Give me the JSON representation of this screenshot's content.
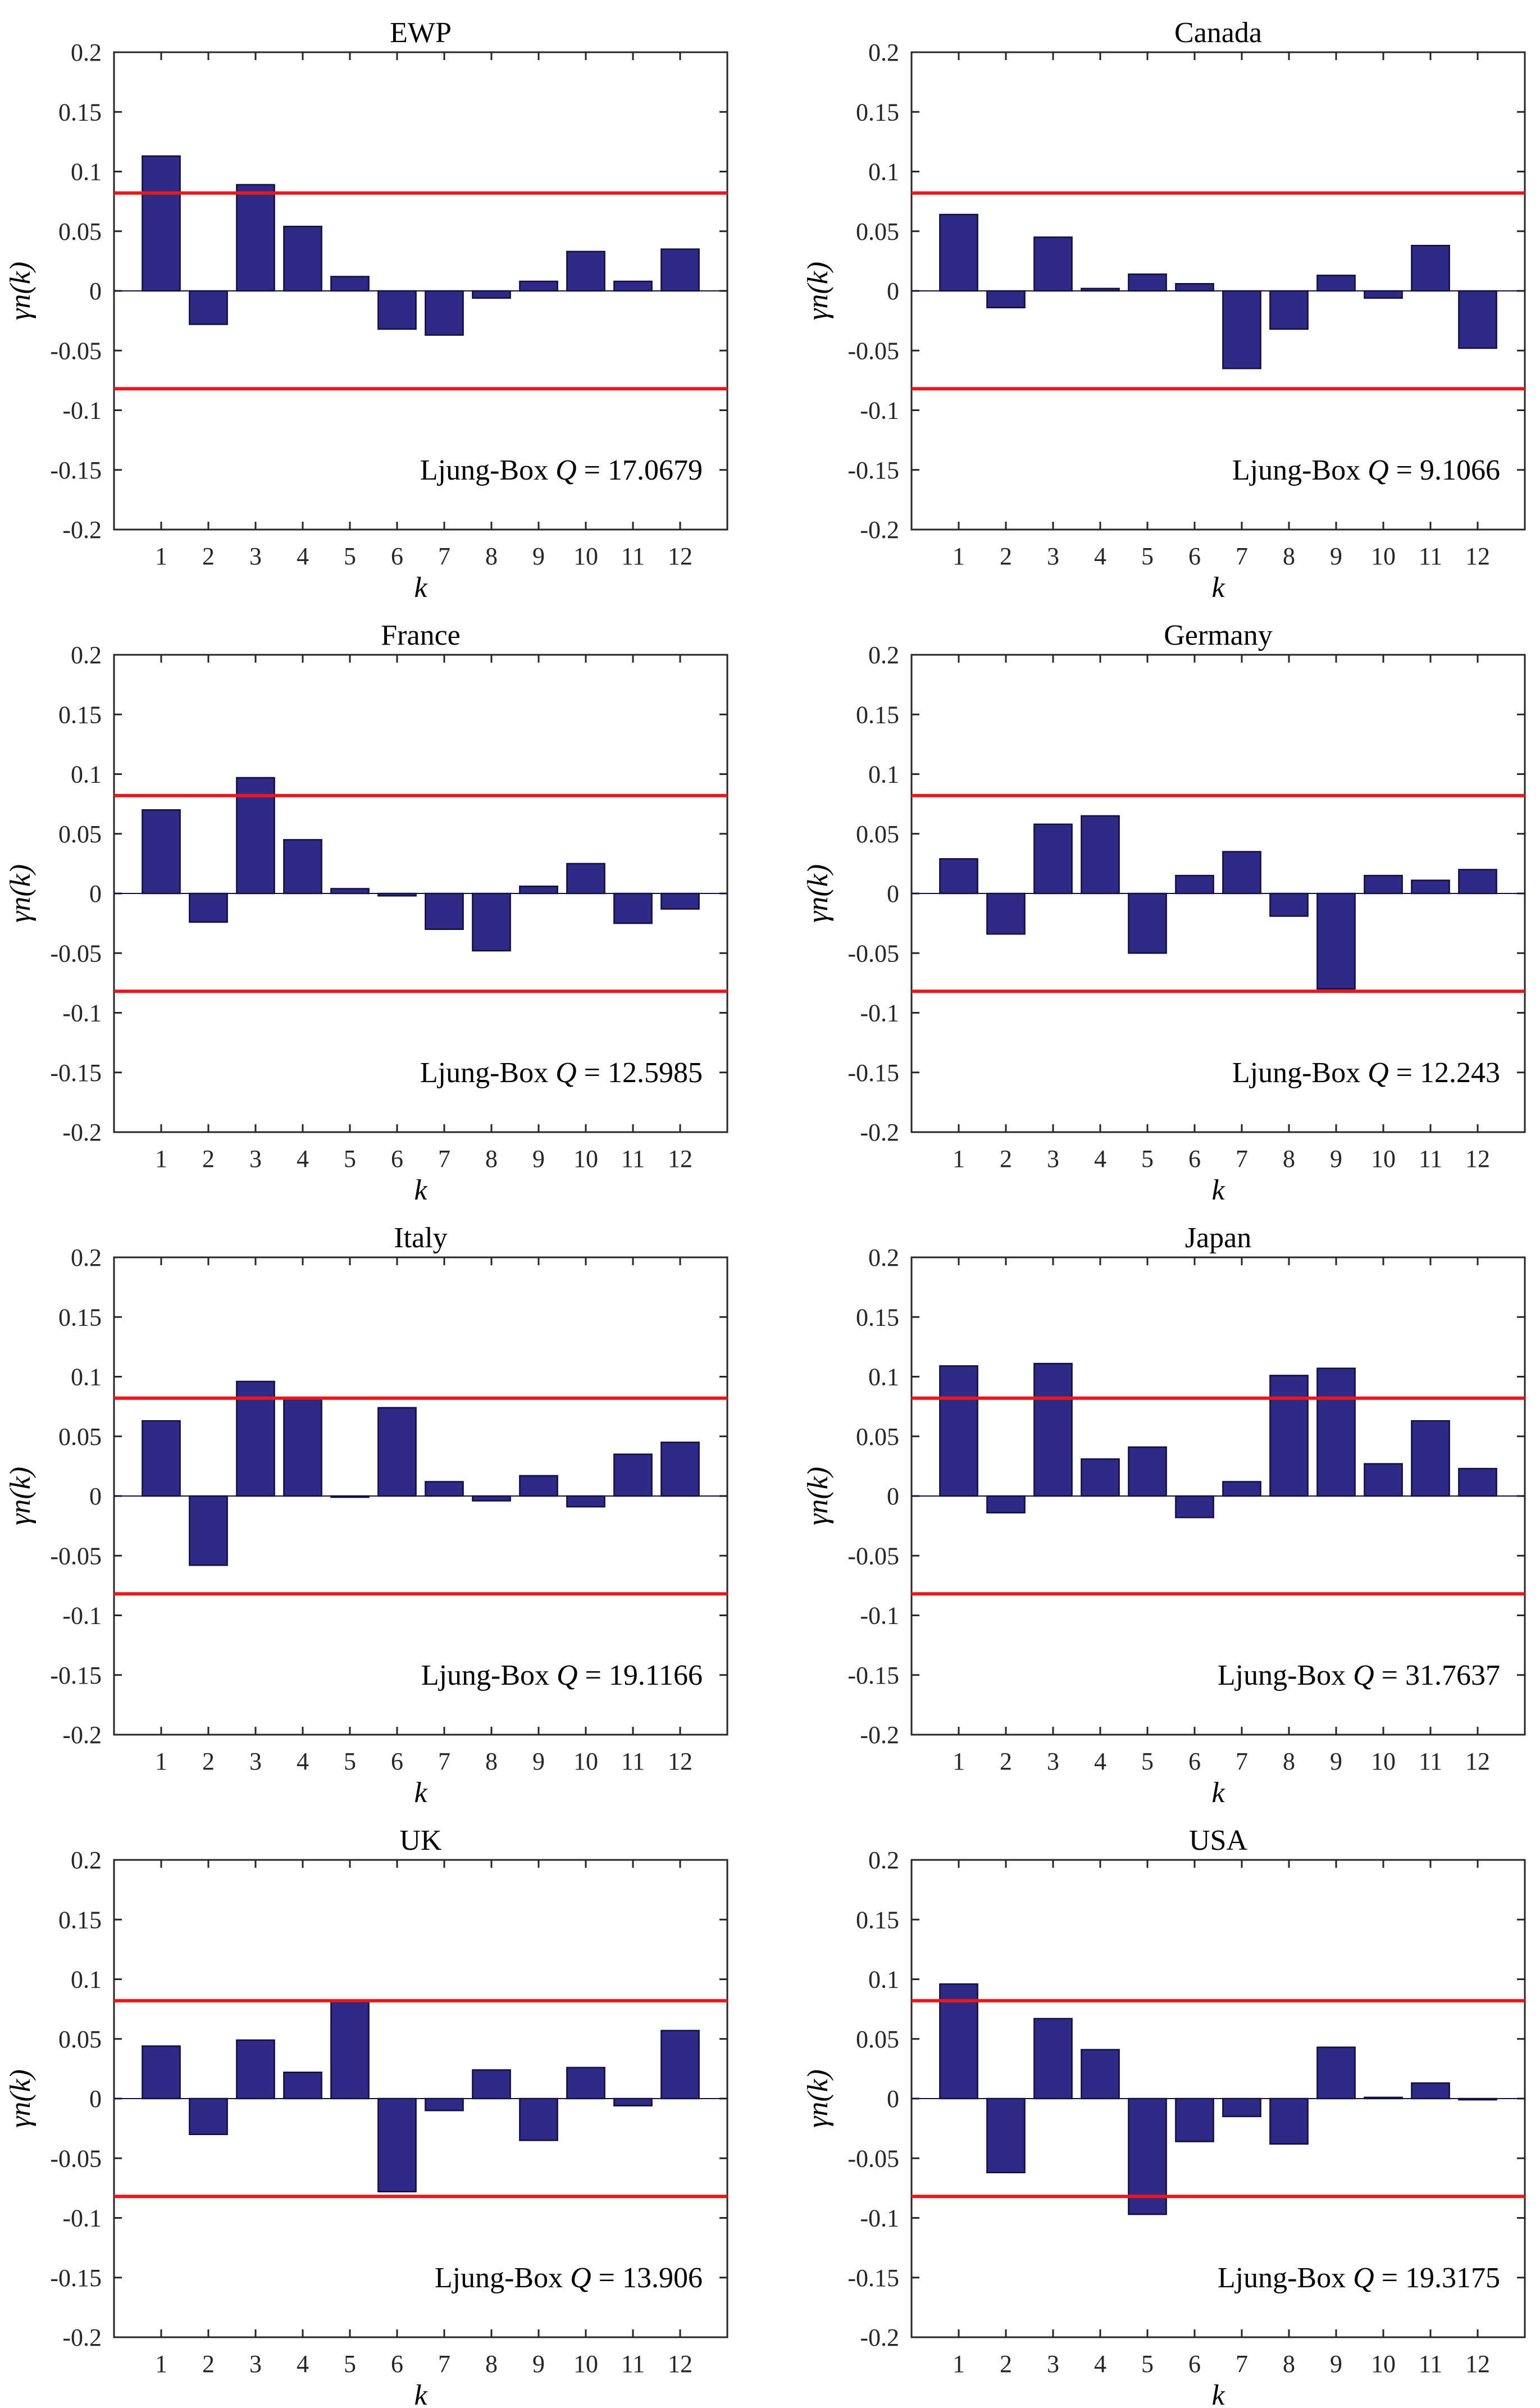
{
  "chart_data": [
    {
      "type": "bar",
      "title": "EWP",
      "categories": [
        "1",
        "2",
        "3",
        "4",
        "5",
        "6",
        "7",
        "8",
        "9",
        "10",
        "11",
        "12"
      ],
      "values": [
        0.113,
        -0.028,
        0.089,
        0.054,
        0.012,
        -0.032,
        -0.037,
        -0.006,
        0.008,
        0.033,
        0.008,
        0.035
      ],
      "ylim": [
        -0.2,
        0.2
      ],
      "yticks": [
        "0.2",
        "0.15",
        "0.1",
        "0.05",
        "0",
        "-0.05",
        "-0.1",
        "-0.15",
        "-0.2"
      ],
      "xlabel": "k",
      "ylabel": "γn(k)",
      "bounds": [
        0.082,
        -0.082
      ],
      "annotation": {
        "prefix": "Ljung-Box ",
        "var": "Q",
        "eq": " = ",
        "value": "17.0679"
      }
    },
    {
      "type": "bar",
      "title": "Canada",
      "categories": [
        "1",
        "2",
        "3",
        "4",
        "5",
        "6",
        "7",
        "8",
        "9",
        "10",
        "11",
        "12"
      ],
      "values": [
        0.064,
        -0.014,
        0.045,
        0.002,
        0.014,
        0.006,
        -0.065,
        -0.032,
        0.013,
        -0.006,
        0.038,
        -0.048
      ],
      "ylim": [
        -0.2,
        0.2
      ],
      "yticks": [
        "0.2",
        "0.15",
        "0.1",
        "0.05",
        "0",
        "-0.05",
        "-0.1",
        "-0.15",
        "-0.2"
      ],
      "xlabel": "k",
      "ylabel": "γn(k)",
      "bounds": [
        0.082,
        -0.082
      ],
      "annotation": {
        "prefix": "Ljung-Box ",
        "var": "Q",
        "eq": " = ",
        "value": "9.1066"
      }
    },
    {
      "type": "bar",
      "title": "France",
      "categories": [
        "1",
        "2",
        "3",
        "4",
        "5",
        "6",
        "7",
        "8",
        "9",
        "10",
        "11",
        "12"
      ],
      "values": [
        0.07,
        -0.024,
        0.097,
        0.045,
        0.004,
        -0.002,
        -0.03,
        -0.048,
        0.006,
        0.025,
        -0.025,
        -0.013
      ],
      "ylim": [
        -0.2,
        0.2
      ],
      "yticks": [
        "0.2",
        "0.15",
        "0.1",
        "0.05",
        "0",
        "-0.05",
        "-0.1",
        "-0.15",
        "-0.2"
      ],
      "xlabel": "k",
      "ylabel": "γn(k)",
      "bounds": [
        0.082,
        -0.082
      ],
      "annotation": {
        "prefix": "Ljung-Box ",
        "var": "Q",
        "eq": " = ",
        "value": "12.5985"
      }
    },
    {
      "type": "bar",
      "title": "Germany",
      "categories": [
        "1",
        "2",
        "3",
        "4",
        "5",
        "6",
        "7",
        "8",
        "9",
        "10",
        "11",
        "12"
      ],
      "values": [
        0.029,
        -0.034,
        0.058,
        0.065,
        -0.05,
        0.015,
        0.035,
        -0.019,
        -0.08,
        0.015,
        0.011,
        0.02
      ],
      "ylim": [
        -0.2,
        0.2
      ],
      "yticks": [
        "0.2",
        "0.15",
        "0.1",
        "0.05",
        "0",
        "-0.05",
        "-0.1",
        "-0.15",
        "-0.2"
      ],
      "xlabel": "k",
      "ylabel": "γn(k)",
      "bounds": [
        0.082,
        -0.082
      ],
      "annotation": {
        "prefix": "Ljung-Box ",
        "var": "Q",
        "eq": " = ",
        "value": "12.243"
      }
    },
    {
      "type": "bar",
      "title": "Italy",
      "categories": [
        "1",
        "2",
        "3",
        "4",
        "5",
        "6",
        "7",
        "8",
        "9",
        "10",
        "11",
        "12"
      ],
      "values": [
        0.063,
        -0.058,
        0.096,
        0.081,
        -0.001,
        0.074,
        0.012,
        -0.004,
        0.017,
        -0.009,
        0.035,
        0.045
      ],
      "ylim": [
        -0.2,
        0.2
      ],
      "yticks": [
        "0.2",
        "0.15",
        "0.1",
        "0.05",
        "0",
        "-0.05",
        "-0.1",
        "-0.15",
        "-0.2"
      ],
      "xlabel": "k",
      "ylabel": "γn(k)",
      "bounds": [
        0.082,
        -0.082
      ],
      "annotation": {
        "prefix": "Ljung-Box ",
        "var": "Q",
        "eq": " = ",
        "value": "19.1166"
      }
    },
    {
      "type": "bar",
      "title": "Japan",
      "categories": [
        "1",
        "2",
        "3",
        "4",
        "5",
        "6",
        "7",
        "8",
        "9",
        "10",
        "11",
        "12"
      ],
      "values": [
        0.109,
        -0.014,
        0.111,
        0.031,
        0.041,
        -0.018,
        0.012,
        0.101,
        0.107,
        0.027,
        0.063,
        0.023
      ],
      "ylim": [
        -0.2,
        0.2
      ],
      "yticks": [
        "0.2",
        "0.15",
        "0.1",
        "0.05",
        "0",
        "-0.05",
        "-0.1",
        "-0.15",
        "-0.2"
      ],
      "xlabel": "k",
      "ylabel": "γn(k)",
      "bounds": [
        0.082,
        -0.082
      ],
      "annotation": {
        "prefix": "Ljung-Box ",
        "var": "Q",
        "eq": " = ",
        "value": "31.7637"
      }
    },
    {
      "type": "bar",
      "title": "UK",
      "categories": [
        "1",
        "2",
        "3",
        "4",
        "5",
        "6",
        "7",
        "8",
        "9",
        "10",
        "11",
        "12"
      ],
      "values": [
        0.044,
        -0.03,
        0.049,
        0.022,
        0.081,
        -0.078,
        -0.01,
        0.024,
        -0.035,
        0.026,
        -0.006,
        0.057
      ],
      "ylim": [
        -0.2,
        0.2
      ],
      "yticks": [
        "0.2",
        "0.15",
        "0.1",
        "0.05",
        "0",
        "-0.05",
        "-0.1",
        "-0.15",
        "-0.2"
      ],
      "xlabel": "k",
      "ylabel": "γn(k)",
      "bounds": [
        0.082,
        -0.082
      ],
      "annotation": {
        "prefix": "Ljung-Box ",
        "var": "Q",
        "eq": " = ",
        "value": "13.906"
      }
    },
    {
      "type": "bar",
      "title": "USA",
      "categories": [
        "1",
        "2",
        "3",
        "4",
        "5",
        "6",
        "7",
        "8",
        "9",
        "10",
        "11",
        "12"
      ],
      "values": [
        0.096,
        -0.062,
        0.067,
        0.041,
        -0.097,
        -0.036,
        -0.015,
        -0.038,
        0.043,
        0.001,
        0.013,
        -0.001
      ],
      "ylim": [
        -0.2,
        0.2
      ],
      "yticks": [
        "0.2",
        "0.15",
        "0.1",
        "0.05",
        "0",
        "-0.05",
        "-0.1",
        "-0.15",
        "-0.2"
      ],
      "xlabel": "k",
      "ylabel": "γn(k)",
      "bounds": [
        0.082,
        -0.082
      ],
      "annotation": {
        "prefix": "Ljung-Box ",
        "var": "Q",
        "eq": " = ",
        "value": "19.3175"
      }
    }
  ],
  "colors": {
    "bar": "#2e2a86",
    "bar_edge": "#101040",
    "bound": "#e8181c",
    "axis": "#262626"
  }
}
